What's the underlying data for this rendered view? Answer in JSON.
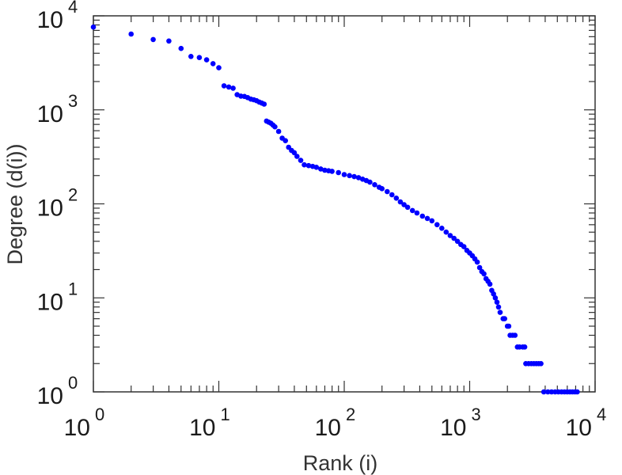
{
  "chart_data": {
    "type": "scatter",
    "xlabel": "Rank (i)",
    "ylabel": "Degree (d(i))",
    "xscale": "log",
    "yscale": "log",
    "xlim": [
      1,
      10000
    ],
    "ylim": [
      1,
      10000
    ],
    "grid": false,
    "marker_color": "#0000ff",
    "x_tick_labels": [
      {
        "base": "10",
        "exp": "0",
        "value": 1
      },
      {
        "base": "10",
        "exp": "1",
        "value": 10
      },
      {
        "base": "10",
        "exp": "2",
        "value": 100
      },
      {
        "base": "10",
        "exp": "3",
        "value": 1000
      },
      {
        "base": "10",
        "exp": "4",
        "value": 10000
      }
    ],
    "y_tick_labels": [
      {
        "base": "10",
        "exp": "0",
        "value": 1
      },
      {
        "base": "10",
        "exp": "1",
        "value": 10
      },
      {
        "base": "10",
        "exp": "2",
        "value": 100
      },
      {
        "base": "10",
        "exp": "3",
        "value": 1000
      },
      {
        "base": "10",
        "exp": "4",
        "value": 10000
      }
    ],
    "series": [
      {
        "points": [
          [
            1,
            7600
          ],
          [
            2,
            6400
          ],
          [
            3,
            5600
          ],
          [
            4,
            5400
          ],
          [
            5,
            4500
          ],
          [
            6,
            3700
          ],
          [
            7,
            3600
          ],
          [
            8,
            3400
          ],
          [
            9,
            3100
          ],
          [
            10,
            2800
          ],
          [
            11,
            1800
          ],
          [
            12,
            1750
          ],
          [
            13,
            1700
          ],
          [
            14,
            1450
          ],
          [
            15,
            1400
          ],
          [
            16,
            1390
          ],
          [
            17,
            1350
          ],
          [
            18,
            1300
          ],
          [
            19,
            1280
          ],
          [
            20,
            1250
          ],
          [
            21,
            1210
          ],
          [
            22,
            1180
          ],
          [
            23,
            1150
          ],
          [
            24,
            760
          ],
          [
            25,
            740
          ],
          [
            26,
            720
          ],
          [
            27,
            690
          ],
          [
            28,
            660
          ],
          [
            30,
            590
          ],
          [
            32,
            500
          ],
          [
            34,
            470
          ],
          [
            36,
            400
          ],
          [
            38,
            370
          ],
          [
            40,
            350
          ],
          [
            42,
            320
          ],
          [
            45,
            290
          ],
          [
            48,
            260
          ],
          [
            52,
            255
          ],
          [
            56,
            250
          ],
          [
            60,
            245
          ],
          [
            65,
            235
          ],
          [
            70,
            228
          ],
          [
            75,
            225
          ],
          [
            80,
            222
          ],
          [
            90,
            215
          ],
          [
            100,
            205
          ],
          [
            110,
            200
          ],
          [
            120,
            195
          ],
          [
            130,
            190
          ],
          [
            140,
            183
          ],
          [
            150,
            177
          ],
          [
            160,
            170
          ],
          [
            175,
            160
          ],
          [
            190,
            150
          ],
          [
            200,
            145
          ],
          [
            220,
            135
          ],
          [
            240,
            125
          ],
          [
            260,
            115
          ],
          [
            280,
            105
          ],
          [
            300,
            98
          ],
          [
            320,
            92
          ],
          [
            350,
            85
          ],
          [
            380,
            80
          ],
          [
            420,
            74
          ],
          [
            460,
            70
          ],
          [
            500,
            66
          ],
          [
            550,
            60
          ],
          [
            600,
            55
          ],
          [
            650,
            50
          ],
          [
            700,
            46
          ],
          [
            750,
            43
          ],
          [
            800,
            40
          ],
          [
            850,
            37
          ],
          [
            900,
            35
          ],
          [
            950,
            32
          ],
          [
            1000,
            30
          ],
          [
            1050,
            28
          ],
          [
            1100,
            26
          ],
          [
            1150,
            24
          ],
          [
            1200,
            21
          ],
          [
            1250,
            19
          ],
          [
            1300,
            18
          ],
          [
            1350,
            16
          ],
          [
            1400,
            15
          ],
          [
            1450,
            14
          ],
          [
            1500,
            12
          ],
          [
            1550,
            11
          ],
          [
            1600,
            10
          ],
          [
            1650,
            9
          ],
          [
            1700,
            8
          ],
          [
            1750,
            7
          ],
          [
            1850,
            6
          ],
          [
            1900,
            6
          ],
          [
            2000,
            5
          ],
          [
            2050,
            5
          ],
          [
            2100,
            4
          ],
          [
            2200,
            4
          ],
          [
            2300,
            4
          ],
          [
            2400,
            3
          ],
          [
            2500,
            3
          ],
          [
            2650,
            3
          ],
          [
            2750,
            3
          ],
          [
            2800,
            2
          ],
          [
            2950,
            2
          ],
          [
            3100,
            2
          ],
          [
            3250,
            2
          ],
          [
            3400,
            2
          ],
          [
            3550,
            2
          ],
          [
            3700,
            2
          ],
          [
            3900,
            1
          ],
          [
            4200,
            1
          ],
          [
            4500,
            1
          ],
          [
            4800,
            1
          ],
          [
            5100,
            1
          ],
          [
            5400,
            1
          ],
          [
            5700,
            1
          ],
          [
            6000,
            1
          ],
          [
            6300,
            1
          ],
          [
            6600,
            1
          ],
          [
            6900,
            1
          ],
          [
            7200,
            1
          ]
        ]
      }
    ]
  }
}
